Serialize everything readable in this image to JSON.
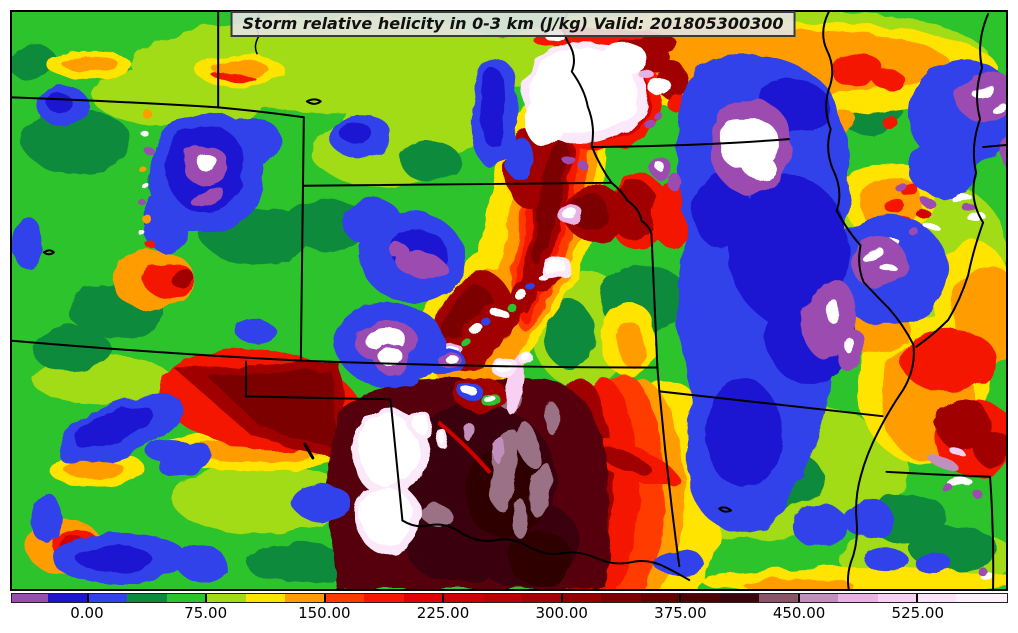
{
  "title": {
    "text": "Storm relative helicity in 0-3 km (J/kg) Valid: 201805300300"
  },
  "colorbar": {
    "min": -48,
    "max": 582,
    "ticks": [
      {
        "value": 0,
        "label": "0.00"
      },
      {
        "value": 75,
        "label": "75.00"
      },
      {
        "value": 150,
        "label": "150.00"
      },
      {
        "value": 225,
        "label": "225.00"
      },
      {
        "value": 300,
        "label": "300.00"
      },
      {
        "value": 375,
        "label": "375.00"
      },
      {
        "value": 450,
        "label": "450.00"
      },
      {
        "value": 525,
        "label": "525.00"
      }
    ],
    "stops": [
      {
        "from": -48,
        "to": -25,
        "color": "#9c4bb0"
      },
      {
        "from": -25,
        "to": 0,
        "color": "#1d14d2"
      },
      {
        "from": 0,
        "to": 25,
        "color": "#3142ea"
      },
      {
        "from": 25,
        "to": 50,
        "color": "#0f8a3a"
      },
      {
        "from": 50,
        "to": 75,
        "color": "#2dc32d"
      },
      {
        "from": 75,
        "to": 100,
        "color": "#a2dc12"
      },
      {
        "from": 100,
        "to": 125,
        "color": "#ffe400"
      },
      {
        "from": 125,
        "to": 150,
        "color": "#ff9c00"
      },
      {
        "from": 150,
        "to": 175,
        "color": "#ff3a00"
      },
      {
        "from": 175,
        "to": 200,
        "color": "#f51500"
      },
      {
        "from": 200,
        "to": 225,
        "color": "#e30000"
      },
      {
        "from": 225,
        "to": 250,
        "color": "#d00000"
      },
      {
        "from": 250,
        "to": 275,
        "color": "#bc0000"
      },
      {
        "from": 275,
        "to": 300,
        "color": "#a80000"
      },
      {
        "from": 300,
        "to": 325,
        "color": "#920000"
      },
      {
        "from": 325,
        "to": 350,
        "color": "#7c0000"
      },
      {
        "from": 350,
        "to": 375,
        "color": "#660000"
      },
      {
        "from": 375,
        "to": 400,
        "color": "#500004"
      },
      {
        "from": 400,
        "to": 425,
        "color": "#3a060c"
      },
      {
        "from": 425,
        "to": 450,
        "color": "#8a5468"
      },
      {
        "from": 450,
        "to": 475,
        "color": "#c28fbc"
      },
      {
        "from": 475,
        "to": 500,
        "color": "#eab2e4"
      },
      {
        "from": 500,
        "to": 525,
        "color": "#f7d0f3"
      },
      {
        "from": 525,
        "to": 550,
        "color": "#fbe3f9"
      },
      {
        "from": 550,
        "to": 582,
        "color": "#fdf1fc"
      }
    ]
  },
  "chart_data": {
    "type": "heatmap",
    "title": "Storm relative helicity in 0-3 km (J/kg) Valid: 201805300300",
    "variable": "Storm relative helicity in 0-3 km",
    "units": "J/kg",
    "valid_time": "201805300300",
    "colorbar_tick_labels": [
      "0.00",
      "75.00",
      "150.00",
      "225.00",
      "300.00",
      "375.00",
      "450.00",
      "525.00"
    ],
    "colorbar_range": [
      -48,
      582
    ],
    "legend_position": "bottom"
  }
}
